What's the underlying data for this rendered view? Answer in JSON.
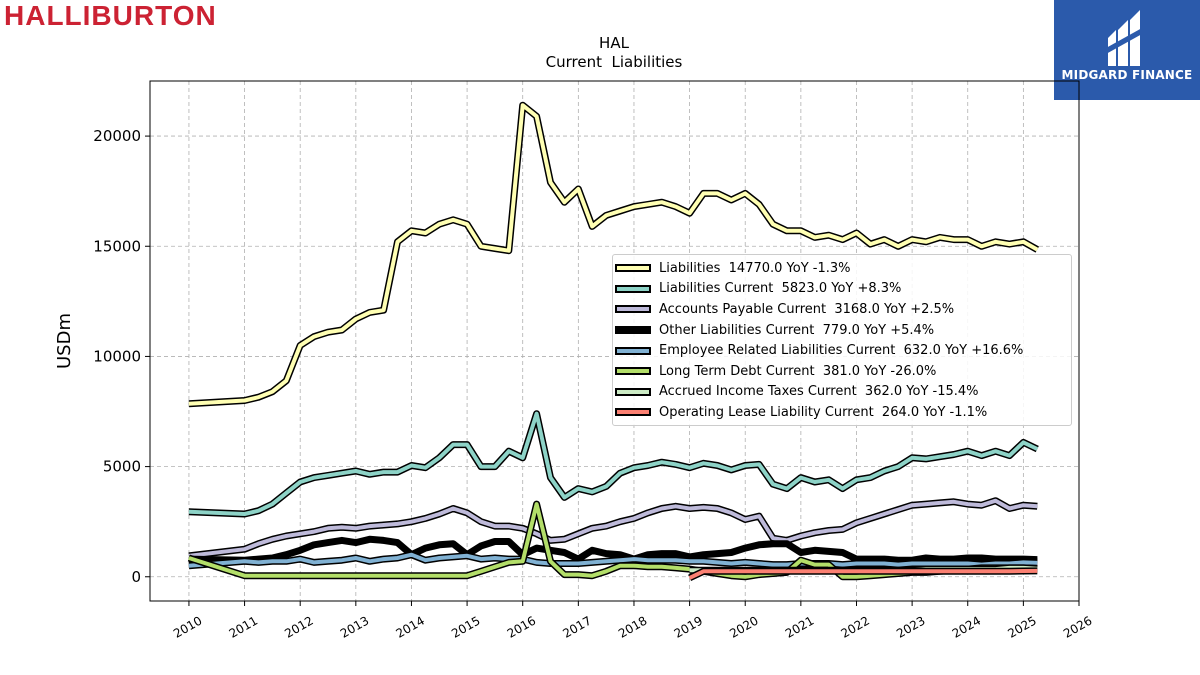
{
  "brand": {
    "name": "HALLIBURTON",
    "color": "#cc2233"
  },
  "watermark": {
    "name": "MIDGARD FINANCE",
    "bg": "#2b5aab"
  },
  "chart_data": {
    "type": "line",
    "title": "HAL",
    "subtitle": "Current  Liabilities",
    "ylabel": "USDm",
    "xlabel": "",
    "xlim": [
      2009.3,
      2026.0
    ],
    "ylim": [
      -1100,
      22500
    ],
    "grid": true,
    "legend_position": "center-right",
    "x_ticks": [
      "2010",
      "2011",
      "2012",
      "2013",
      "2014",
      "2015",
      "2016",
      "2017",
      "2018",
      "2019",
      "2020",
      "2021",
      "2022",
      "2023",
      "2024",
      "2025",
      "2026"
    ],
    "y_ticks": [
      "0",
      "5000",
      "10000",
      "15000",
      "20000"
    ],
    "series": [
      {
        "name": "Liabilities",
        "legend": "Liabilities  14770.0 YoY -1.3%",
        "color": "#ffffb3",
        "x": [
          2010.0,
          2011.0,
          2011.25,
          2011.5,
          2011.75,
          2012.0,
          2012.25,
          2012.5,
          2012.75,
          2013.0,
          2013.25,
          2013.5,
          2013.75,
          2014.0,
          2014.25,
          2014.5,
          2014.75,
          2015.0,
          2015.25,
          2015.5,
          2015.75,
          2016.0,
          2016.25,
          2016.5,
          2016.75,
          2017.0,
          2017.25,
          2017.5,
          2017.75,
          2018.0,
          2018.25,
          2018.5,
          2018.75,
          2019.0,
          2019.25,
          2019.5,
          2019.75,
          2020.0,
          2020.25,
          2020.5,
          2020.75,
          2021.0,
          2021.25,
          2021.5,
          2021.75,
          2022.0,
          2022.25,
          2022.5,
          2022.75,
          2023.0,
          2023.25,
          2023.5,
          2023.75,
          2024.0,
          2024.25,
          2024.5,
          2024.75,
          2025.0,
          2025.25
        ],
        "y": [
          7850,
          8000,
          8150,
          8400,
          8900,
          10500,
          10900,
          11100,
          11200,
          11700,
          12000,
          12100,
          15200,
          15700,
          15600,
          16000,
          16200,
          16000,
          15000,
          14900,
          14800,
          21400,
          20900,
          17900,
          17000,
          17600,
          15900,
          16400,
          16600,
          16800,
          16900,
          17000,
          16800,
          16500,
          17400,
          17400,
          17100,
          17400,
          16900,
          16000,
          15700,
          15700,
          15400,
          15500,
          15300,
          15600,
          15100,
          15300,
          15000,
          15300,
          15200,
          15400,
          15300,
          15300,
          15000,
          15200,
          15100,
          15200,
          14850
        ]
      },
      {
        "name": "Liabilities Current",
        "legend": "Liabilities Current  5823.0 YoY +8.3%",
        "color": "#8dd3c7",
        "x": [
          2010.0,
          2011.0,
          2011.25,
          2011.5,
          2011.75,
          2012.0,
          2012.25,
          2012.5,
          2012.75,
          2013.0,
          2013.25,
          2013.5,
          2013.75,
          2014.0,
          2014.25,
          2014.5,
          2014.75,
          2015.0,
          2015.25,
          2015.5,
          2015.75,
          2016.0,
          2016.25,
          2016.5,
          2016.75,
          2017.0,
          2017.25,
          2017.5,
          2017.75,
          2018.0,
          2018.25,
          2018.5,
          2018.75,
          2019.0,
          2019.25,
          2019.5,
          2019.75,
          2020.0,
          2020.25,
          2020.5,
          2020.75,
          2021.0,
          2021.25,
          2021.5,
          2021.75,
          2022.0,
          2022.25,
          2022.5,
          2022.75,
          2023.0,
          2023.25,
          2023.5,
          2023.75,
          2024.0,
          2024.25,
          2024.5,
          2024.75,
          2025.0,
          2025.25
        ],
        "y": [
          2950,
          2850,
          3000,
          3300,
          3800,
          4300,
          4500,
          4600,
          4700,
          4800,
          4650,
          4750,
          4750,
          5050,
          4950,
          5400,
          6000,
          6000,
          5000,
          5000,
          5700,
          5400,
          7400,
          4500,
          3600,
          4000,
          3850,
          4100,
          4700,
          4950,
          5050,
          5200,
          5100,
          4950,
          5150,
          5050,
          4850,
          5050,
          5100,
          4200,
          4000,
          4500,
          4300,
          4400,
          4000,
          4400,
          4500,
          4800,
          5000,
          5400,
          5350,
          5450,
          5550,
          5700,
          5500,
          5700,
          5500,
          6100,
          5800
        ]
      },
      {
        "name": "Accounts Payable Current",
        "legend": "Accounts Payable Current  3168.0 YoY +2.5%",
        "color": "#bebada",
        "x": [
          2010.0,
          2011.0,
          2011.25,
          2011.5,
          2011.75,
          2012.0,
          2012.25,
          2012.5,
          2012.75,
          2013.0,
          2013.25,
          2013.5,
          2013.75,
          2014.0,
          2014.25,
          2014.5,
          2014.75,
          2015.0,
          2015.25,
          2015.5,
          2015.75,
          2016.0,
          2016.25,
          2016.5,
          2016.75,
          2017.0,
          2017.25,
          2017.5,
          2017.75,
          2018.0,
          2018.25,
          2018.5,
          2018.75,
          2019.0,
          2019.25,
          2019.5,
          2019.75,
          2020.0,
          2020.25,
          2020.5,
          2020.75,
          2021.0,
          2021.25,
          2021.5,
          2021.75,
          2022.0,
          2022.25,
          2022.5,
          2022.75,
          2023.0,
          2023.25,
          2023.5,
          2023.75,
          2024.0,
          2024.25,
          2024.5,
          2024.75,
          2025.0,
          2025.25
        ],
        "y": [
          950,
          1250,
          1500,
          1700,
          1850,
          1950,
          2050,
          2200,
          2250,
          2200,
          2300,
          2350,
          2400,
          2500,
          2650,
          2850,
          3100,
          2900,
          2500,
          2300,
          2300,
          2200,
          1950,
          1650,
          1700,
          1950,
          2200,
          2300,
          2500,
          2650,
          2900,
          3100,
          3200,
          3100,
          3150,
          3100,
          2900,
          2600,
          2750,
          1750,
          1650,
          1850,
          2000,
          2100,
          2150,
          2450,
          2650,
          2850,
          3050,
          3250,
          3300,
          3350,
          3400,
          3300,
          3250,
          3450,
          3100,
          3250,
          3200
        ]
      },
      {
        "name": "Other Liabilities Current",
        "legend": "Other Liabilities Current  779.0 YoY +5.4%",
        "color": "#000000",
        "x": [
          2010.0,
          2011.0,
          2011.25,
          2011.5,
          2011.75,
          2012.0,
          2012.25,
          2012.5,
          2012.75,
          2013.0,
          2013.25,
          2013.5,
          2013.75,
          2014.0,
          2014.25,
          2014.5,
          2014.75,
          2015.0,
          2015.25,
          2015.5,
          2015.75,
          2016.0,
          2016.25,
          2016.5,
          2016.75,
          2017.0,
          2017.25,
          2017.5,
          2017.75,
          2018.0,
          2018.25,
          2018.5,
          2018.75,
          2019.0,
          2019.25,
          2019.5,
          2019.75,
          2020.0,
          2020.25,
          2020.5,
          2020.75,
          2021.0,
          2021.25,
          2021.5,
          2021.75,
          2022.0,
          2022.25,
          2022.5,
          2022.75,
          2023.0,
          2023.25,
          2023.5,
          2023.75,
          2024.0,
          2024.25,
          2024.5,
          2024.75,
          2025.0,
          2025.25
        ],
        "y": [
          800,
          750,
          800,
          850,
          1000,
          1200,
          1450,
          1550,
          1650,
          1550,
          1700,
          1650,
          1550,
          1000,
          1300,
          1450,
          1500,
          1000,
          1400,
          1600,
          1600,
          1000,
          1300,
          1200,
          1100,
          800,
          1200,
          1050,
          1000,
          800,
          1000,
          1050,
          1050,
          900,
          1000,
          1050,
          1100,
          1300,
          1450,
          1500,
          1500,
          1100,
          1200,
          1150,
          1100,
          800,
          800,
          800,
          750,
          750,
          850,
          800,
          800,
          850,
          850,
          800,
          800,
          800,
          780
        ]
      },
      {
        "name": "Employee Related Liabilities Current",
        "legend": "Employee Related Liabilities Current  632.0 YoY +16.6%",
        "color": "#80b1d3",
        "x": [
          2010.0,
          2011.0,
          2011.25,
          2011.5,
          2011.75,
          2012.0,
          2012.25,
          2012.5,
          2012.75,
          2013.0,
          2013.25,
          2013.5,
          2013.75,
          2014.0,
          2014.25,
          2014.5,
          2014.75,
          2015.0,
          2015.25,
          2015.5,
          2015.75,
          2016.0,
          2016.25,
          2016.5,
          2016.75,
          2017.0,
          2017.25,
          2017.5,
          2017.75,
          2018.0,
          2018.25,
          2018.5,
          2018.75,
          2019.0,
          2019.25,
          2019.5,
          2019.75,
          2020.0,
          2020.25,
          2020.5,
          2020.75,
          2021.0,
          2021.25,
          2021.5,
          2021.75,
          2022.0,
          2022.25,
          2022.5,
          2022.75,
          2023.0,
          2023.25,
          2023.5,
          2023.75,
          2024.0,
          2024.25,
          2024.5,
          2024.75,
          2025.0,
          2025.25
        ],
        "y": [
          500,
          700,
          650,
          700,
          700,
          800,
          650,
          700,
          750,
          850,
          700,
          800,
          850,
          1000,
          750,
          850,
          900,
          950,
          800,
          850,
          800,
          800,
          650,
          600,
          600,
          600,
          650,
          700,
          750,
          800,
          750,
          750,
          750,
          700,
          700,
          650,
          600,
          650,
          600,
          550,
          550,
          600,
          600,
          600,
          550,
          600,
          600,
          600,
          550,
          600,
          600,
          600,
          600,
          600,
          550,
          600,
          600,
          650,
          630
        ]
      },
      {
        "name": "Long Term Debt Current",
        "legend": "Long Term Debt Current  381.0 YoY -26.0%",
        "color": "#b3de69",
        "x": [
          2010.0,
          2011.0,
          2011.25,
          2011.5,
          2011.75,
          2012.0,
          2012.25,
          2012.5,
          2012.75,
          2013.0,
          2013.25,
          2013.5,
          2013.75,
          2014.0,
          2014.25,
          2014.5,
          2014.75,
          2015.0,
          2015.25,
          2015.5,
          2015.75,
          2016.0,
          2016.25,
          2016.5,
          2016.75,
          2017.0,
          2017.25,
          2017.5,
          2017.75,
          2018.0,
          2018.25,
          2018.5,
          2018.75,
          2019.0,
          2019.25,
          2019.5,
          2019.75,
          2020.0,
          2020.25,
          2020.5,
          2020.75,
          2021.0,
          2021.25,
          2021.5,
          2021.75,
          2022.0,
          2022.25,
          2022.5,
          2022.75,
          2023.0,
          2023.25,
          2023.5,
          2023.75,
          2024.0,
          2024.25,
          2024.5,
          2024.75,
          2025.0,
          2025.25
        ],
        "y": [
          850,
          50,
          50,
          50,
          50,
          50,
          50,
          50,
          50,
          50,
          50,
          50,
          50,
          50,
          50,
          50,
          50,
          50,
          250,
          450,
          650,
          700,
          3300,
          700,
          100,
          100,
          50,
          250,
          500,
          500,
          450,
          450,
          400,
          350,
          250,
          150,
          50,
          0,
          100,
          150,
          200,
          750,
          550,
          550,
          0,
          0,
          50,
          100,
          150,
          200,
          200,
          250,
          300,
          350,
          400,
          400,
          400,
          400,
          380
        ]
      },
      {
        "name": "Accrued Income Taxes Current",
        "legend": "Accrued Income Taxes Current  362.0 YoY -15.4%",
        "color": "#ccebc5",
        "x": [
          2019.0,
          2019.25,
          2019.5,
          2019.75,
          2020.0,
          2020.25,
          2020.5,
          2020.75,
          2021.0,
          2021.25,
          2021.5,
          2021.75,
          2022.0,
          2022.25,
          2022.5,
          2022.75,
          2023.0,
          2023.25,
          2023.5,
          2023.75,
          2024.0,
          2024.25,
          2024.5,
          2024.75,
          2025.0,
          2025.25
        ],
        "y": [
          300,
          300,
          300,
          300,
          300,
          300,
          300,
          300,
          300,
          300,
          300,
          300,
          300,
          300,
          300,
          300,
          300,
          350,
          350,
          350,
          350,
          350,
          350,
          400,
          400,
          360
        ]
      },
      {
        "name": "Operating Lease Liability Current",
        "legend": "Operating Lease Liability Current  264.0 YoY -1.1%",
        "color": "#fb8072",
        "x": [
          2019.0,
          2019.25,
          2019.5,
          2019.75,
          2020.0,
          2020.25,
          2020.5,
          2020.75,
          2021.0,
          2021.25,
          2021.5,
          2021.75,
          2022.0,
          2022.25,
          2022.5,
          2022.75,
          2023.0,
          2023.25,
          2023.5,
          2023.75,
          2024.0,
          2024.25,
          2024.5,
          2024.75,
          2025.0,
          2025.25
        ],
        "y": [
          -50,
          250,
          250,
          250,
          250,
          250,
          250,
          250,
          250,
          250,
          250,
          250,
          250,
          250,
          250,
          250,
          250,
          250,
          250,
          250,
          250,
          250,
          250,
          250,
          260,
          264
        ]
      }
    ]
  }
}
